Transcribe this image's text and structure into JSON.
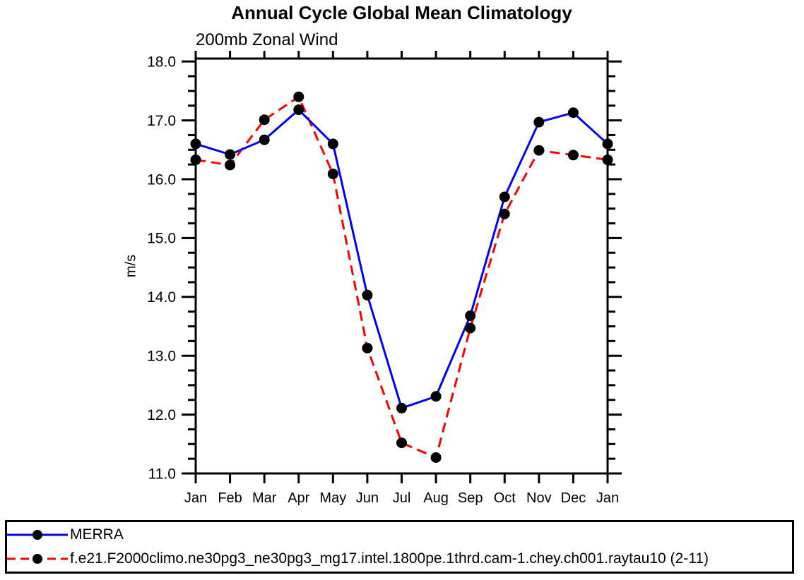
{
  "page": {
    "background": "#ffffff"
  },
  "chart_data": {
    "type": "line",
    "title": "Annual Cycle Global Mean Climatology",
    "subtitle": "200mb Zonal Wind",
    "ylabel": "m/s",
    "xlabel": "",
    "x_categories": [
      "Jan",
      "Feb",
      "Mar",
      "Apr",
      "May",
      "Jun",
      "Jul",
      "Aug",
      "Sep",
      "Oct",
      "Nov",
      "Dec",
      "Jan"
    ],
    "ylim": [
      11.0,
      18.05
    ],
    "ytick_values": [
      11,
      12,
      13,
      14,
      15,
      16,
      17,
      18
    ],
    "ytick_labels": [
      "11.0",
      "12.0",
      "13.0",
      "14.0",
      "15.0",
      "16.0",
      "17.0",
      "18.0"
    ],
    "ytick_minor_interval": 0.25,
    "grid": false,
    "legend_position": "bottom-outside-box",
    "axis_color": "#000000",
    "marker": {
      "shape": "filled-circle",
      "color": "#000000",
      "radius_px": 7.5
    },
    "series": [
      {
        "name": "MERRA",
        "color": "#0000ff",
        "line_style": "solid",
        "values": [
          16.6,
          16.42,
          16.67,
          17.18,
          16.6,
          14.03,
          12.11,
          12.31,
          13.68,
          15.7,
          16.97,
          17.13,
          16.6
        ]
      },
      {
        "name": "f.e21.F2000climo.ne30pg3_ne30pg3_mg17.intel.1800pe.1thrd.cam-1.chey.ch001.raytau10 (2-11)",
        "color": "#ff0000",
        "line_style": "dashed",
        "values": [
          16.33,
          16.24,
          17.01,
          17.4,
          16.09,
          13.13,
          11.52,
          11.27,
          13.47,
          15.41,
          16.49,
          16.41,
          16.33
        ]
      }
    ]
  }
}
